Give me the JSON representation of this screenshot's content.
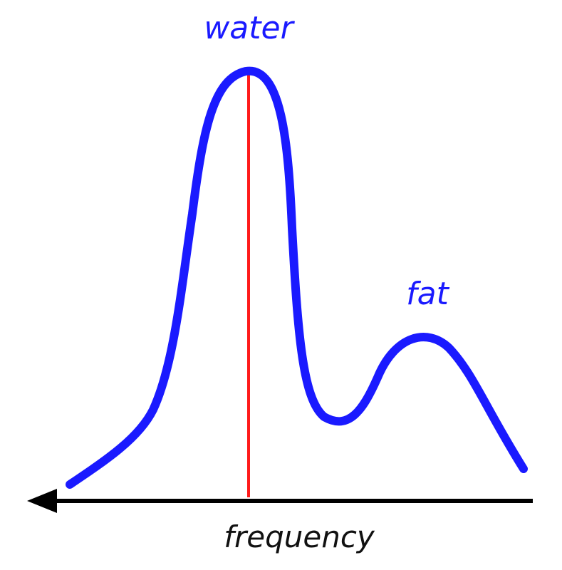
{
  "labels": {
    "water": "water",
    "fat": "fat",
    "axis": "frequency"
  },
  "colors": {
    "curve": "#1a1aff",
    "marker_line": "#ff1a1a",
    "axis": "#000000",
    "label_peaks": "#1a1aff",
    "label_axis": "#111111"
  },
  "axis": {
    "arrow_direction": "left"
  }
}
